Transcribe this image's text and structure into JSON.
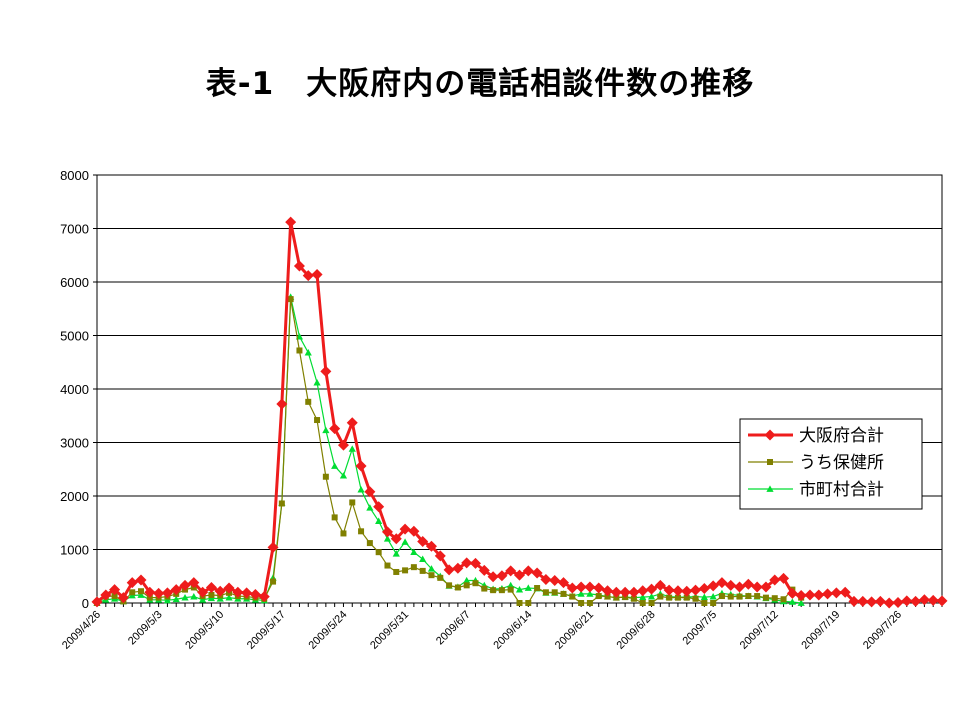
{
  "chart_data": {
    "type": "line",
    "title": "表-1　大阪府内の電話相談件数の推移",
    "xlabel": "",
    "ylabel": "",
    "ylim": [
      0,
      8000
    ],
    "yticks": [
      0,
      1000,
      2000,
      3000,
      4000,
      5000,
      6000,
      7000,
      8000
    ],
    "grid": true,
    "legend_position": "right",
    "x_start": "2009/4/26",
    "x_tick_labels": [
      "2009/4/26",
      "2009/5/3",
      "2009/5/10",
      "2009/5/17",
      "2009/5/24",
      "2009/5/31",
      "2009/6/7",
      "2009/6/14",
      "2009/6/21",
      "2009/6/28",
      "2009/7/5",
      "2009/7/12",
      "2009/7/19",
      "2009/7/26"
    ],
    "series": [
      {
        "name": "大阪府合計",
        "color": "#ee1c1c",
        "marker": "diamond",
        "values": [
          20,
          150,
          250,
          100,
          380,
          430,
          200,
          180,
          190,
          250,
          330,
          380,
          200,
          290,
          220,
          280,
          200,
          190,
          160,
          120,
          1040,
          3720,
          7120,
          6300,
          6120,
          6140,
          4330,
          3260,
          2950,
          3370,
          2560,
          2080,
          1800,
          1330,
          1200,
          1380,
          1340,
          1150,
          1060,
          880,
          620,
          650,
          750,
          740,
          610,
          490,
          510,
          600,
          520,
          600,
          560,
          440,
          420,
          380,
          280,
          300,
          300,
          280,
          230,
          200,
          200,
          200,
          230,
          260,
          330,
          240,
          230,
          220,
          240,
          270,
          320,
          380,
          330,
          300,
          350,
          300,
          300,
          430,
          460,
          180,
          140,
          150,
          150,
          170,
          190,
          200,
          30,
          30,
          20,
          30,
          0,
          10,
          40,
          30,
          60,
          50,
          40
        ]
      },
      {
        "name": "うち保健所",
        "color": "#808000",
        "marker": "square",
        "values": [
          0,
          120,
          130,
          30,
          200,
          220,
          100,
          100,
          120,
          170,
          250,
          290,
          130,
          150,
          140,
          190,
          130,
          120,
          100,
          80,
          400,
          1860,
          5680,
          4720,
          3760,
          3420,
          2360,
          1600,
          1300,
          1880,
          1340,
          1120,
          950,
          700,
          580,
          610,
          670,
          600,
          520,
          470,
          330,
          290,
          330,
          370,
          270,
          240,
          240,
          250,
          0,
          0,
          280,
          200,
          200,
          170,
          120,
          0,
          0,
          130,
          120,
          100,
          110,
          80,
          0,
          0,
          120,
          100,
          100,
          100,
          80,
          0,
          0,
          130,
          120,
          120,
          130,
          130,
          100,
          90,
          70,
          250,
          100
        ]
      },
      {
        "name": "市町村合計",
        "color": "#00dd33",
        "marker": "triangle",
        "values": [
          0,
          60,
          80,
          30,
          140,
          150,
          60,
          60,
          50,
          70,
          100,
          120,
          60,
          90,
          80,
          100,
          80,
          80,
          60,
          50,
          470,
          1870,
          5720,
          4980,
          4680,
          4120,
          3230,
          2560,
          2380,
          2880,
          2120,
          1780,
          1530,
          1200,
          920,
          1140,
          950,
          820,
          640,
          500,
          320,
          300,
          420,
          420,
          330,
          260,
          270,
          330,
          250,
          280,
          270,
          190,
          190,
          170,
          130,
          170,
          170,
          150,
          120,
          100,
          110,
          100,
          110,
          120,
          170,
          120,
          110,
          110,
          120,
          110,
          120,
          180,
          160,
          140,
          130,
          120,
          90,
          60,
          30,
          20,
          0
        ]
      }
    ]
  }
}
